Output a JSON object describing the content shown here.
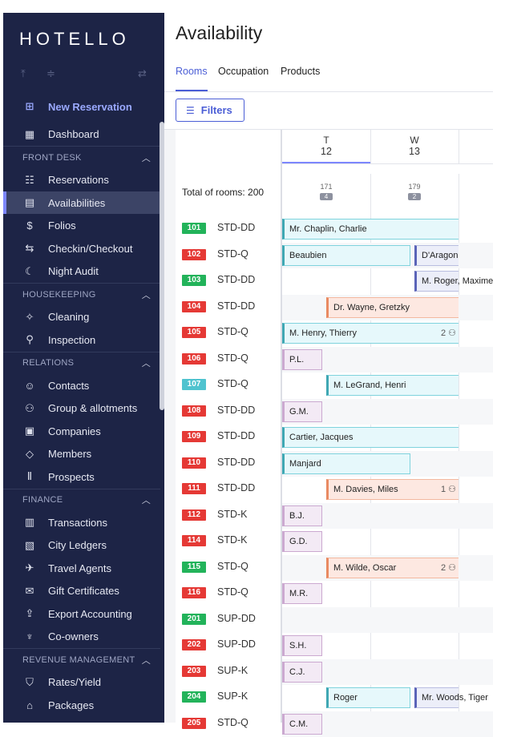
{
  "app": {
    "logo": "HOTELLO",
    "page_title": "Availability"
  },
  "colors": {
    "sidebar": "#1d2446",
    "accent": "#4b5ed6",
    "green": "#22b35a",
    "red": "#e53935",
    "teal": "#4fc3cf"
  },
  "sidebar": {
    "new_reservation": "New Reservation",
    "dashboard": "Dashboard",
    "sections": [
      {
        "title": "FRONT DESK",
        "items": [
          "Reservations",
          "Availabilities",
          "Folios",
          "Checkin/Checkout",
          "Night Audit"
        ]
      },
      {
        "title": "HOUSEKEEPING",
        "items": [
          "Cleaning",
          "Inspection"
        ]
      },
      {
        "title": "RELATIONS",
        "items": [
          "Contacts",
          "Group & allotments",
          "Companies",
          "Members",
          "Prospects"
        ]
      },
      {
        "title": "FINANCE",
        "items": [
          "Transactions",
          "City Ledgers",
          "Travel Agents",
          "Gift Certificates",
          "Export Accounting",
          "Co-owners"
        ]
      },
      {
        "title": "REVENUE MANAGEMENT",
        "items": [
          "Rates/Yield",
          "Packages"
        ]
      }
    ]
  },
  "tabs": [
    "Rooms",
    "Occupation",
    "Products"
  ],
  "filters_label": "Filters",
  "grid": {
    "total_label": "Total of rooms:",
    "total_value": "200",
    "days": [
      {
        "dow": "T",
        "day": "12",
        "count": "171",
        "badge": "4"
      },
      {
        "dow": "W",
        "day": "13",
        "count": "179",
        "badge": "2"
      }
    ],
    "rows": [
      {
        "num": "101",
        "status": "green",
        "type": "STD-DD",
        "bookings": [
          {
            "name": "Mr. Chaplin, Charlie",
            "style": "teal",
            "start": 0,
            "end": 2
          }
        ]
      },
      {
        "num": "102",
        "status": "red",
        "type": "STD-Q",
        "bookings": [
          {
            "name": "Beaubien",
            "style": "teal",
            "start": 0,
            "end": 1.45
          },
          {
            "name": "D'Aragon",
            "style": "lav",
            "start": 1.5,
            "end": 2
          }
        ]
      },
      {
        "num": "103",
        "status": "green",
        "type": "STD-DD",
        "bookings": [
          {
            "name": "M. Roger, Maxime",
            "style": "lav",
            "start": 1.5,
            "end": 2
          }
        ]
      },
      {
        "num": "104",
        "status": "red",
        "type": "STD-DD",
        "bookings": [
          {
            "name": "Dr. Wayne, Gretzky",
            "style": "peach",
            "start": 0.5,
            "end": 2
          }
        ]
      },
      {
        "num": "105",
        "status": "red",
        "type": "STD-Q",
        "bookings": [
          {
            "name": "M. Henry, Thierry",
            "style": "teal",
            "start": 0,
            "end": 2,
            "guests": "2"
          }
        ]
      },
      {
        "num": "106",
        "status": "red",
        "type": "STD-Q",
        "bookings": [
          {
            "name": "P.L.",
            "style": "pink",
            "start": 0,
            "end": 0.45
          }
        ]
      },
      {
        "num": "107",
        "status": "teal",
        "type": "STD-Q",
        "bookings": [
          {
            "name": "M. LeGrand, Henri",
            "style": "teal",
            "start": 0.5,
            "end": 2
          }
        ]
      },
      {
        "num": "108",
        "status": "red",
        "type": "STD-DD",
        "bookings": [
          {
            "name": "G.M.",
            "style": "pink",
            "start": 0,
            "end": 0.45
          }
        ]
      },
      {
        "num": "109",
        "status": "red",
        "type": "STD-DD",
        "bookings": [
          {
            "name": "Cartier, Jacques",
            "style": "teal",
            "start": 0,
            "end": 2
          }
        ]
      },
      {
        "num": "110",
        "status": "red",
        "type": "STD-DD",
        "bookings": [
          {
            "name": "Manjard",
            "style": "teal",
            "start": 0,
            "end": 1.45
          }
        ]
      },
      {
        "num": "111",
        "status": "red",
        "type": "STD-DD",
        "bookings": [
          {
            "name": "M. Davies, Miles",
            "style": "peach",
            "start": 0.5,
            "end": 2,
            "guests": "1"
          }
        ]
      },
      {
        "num": "112",
        "status": "red",
        "type": "STD-K",
        "bookings": [
          {
            "name": "B.J.",
            "style": "pink",
            "start": 0,
            "end": 0.45
          }
        ]
      },
      {
        "num": "114",
        "status": "red",
        "type": "STD-K",
        "bookings": [
          {
            "name": "G.D.",
            "style": "pink",
            "start": 0,
            "end": 0.45
          }
        ]
      },
      {
        "num": "115",
        "status": "green",
        "type": "STD-Q",
        "bookings": [
          {
            "name": "M. Wilde, Oscar",
            "style": "peach",
            "start": 0.5,
            "end": 2,
            "guests": "2"
          }
        ]
      },
      {
        "num": "116",
        "status": "red",
        "type": "STD-Q",
        "bookings": [
          {
            "name": "M.R.",
            "style": "pink",
            "start": 0,
            "end": 0.45
          }
        ]
      },
      {
        "num": "201",
        "status": "green",
        "type": "SUP-DD",
        "bookings": []
      },
      {
        "num": "202",
        "status": "red",
        "type": "SUP-DD",
        "bookings": [
          {
            "name": "S.H.",
            "style": "pink",
            "start": 0,
            "end": 0.45
          }
        ]
      },
      {
        "num": "203",
        "status": "red",
        "type": "SUP-K",
        "bookings": [
          {
            "name": "C.J.",
            "style": "pink",
            "start": 0,
            "end": 0.45
          }
        ]
      },
      {
        "num": "204",
        "status": "green",
        "type": "SUP-K",
        "bookings": [
          {
            "name": "Roger",
            "style": "teal",
            "start": 0.5,
            "end": 1.45
          },
          {
            "name": "Mr. Woods, Tiger",
            "style": "lav",
            "start": 1.5,
            "end": 2
          }
        ]
      },
      {
        "num": "205",
        "status": "red",
        "type": "STD-Q",
        "bookings": [
          {
            "name": "C.M.",
            "style": "pink",
            "start": 0,
            "end": 0.45
          }
        ]
      }
    ]
  }
}
